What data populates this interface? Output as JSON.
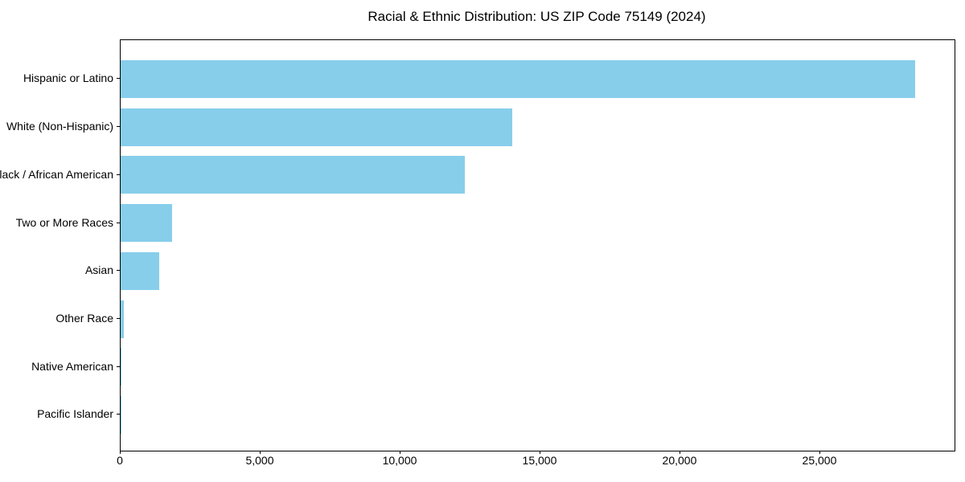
{
  "chart_data": {
    "type": "bar",
    "orientation": "horizontal",
    "title": "Racial & Ethnic Distribution: US ZIP Code 75149 (2024)",
    "categories": [
      "Hispanic or Latino",
      "White (Non-Hispanic)",
      "Black / African American",
      "Two or More Races",
      "Asian",
      "Other Race",
      "Native American",
      "Pacific Islander"
    ],
    "values": [
      28400,
      14000,
      12300,
      1850,
      1390,
      120,
      40,
      10
    ],
    "xlabel": "",
    "ylabel": "",
    "xlim": [
      0,
      29800
    ],
    "x_ticks": [
      0,
      5000,
      10000,
      15000,
      20000,
      25000
    ],
    "x_tick_labels": [
      "0",
      "5,000",
      "10,000",
      "15,000",
      "20,000",
      "25,000"
    ],
    "bar_color": "#87CEEB",
    "axis_color": "#000000",
    "background_color": "#FFFFFF",
    "grid": false,
    "legend": "none"
  }
}
